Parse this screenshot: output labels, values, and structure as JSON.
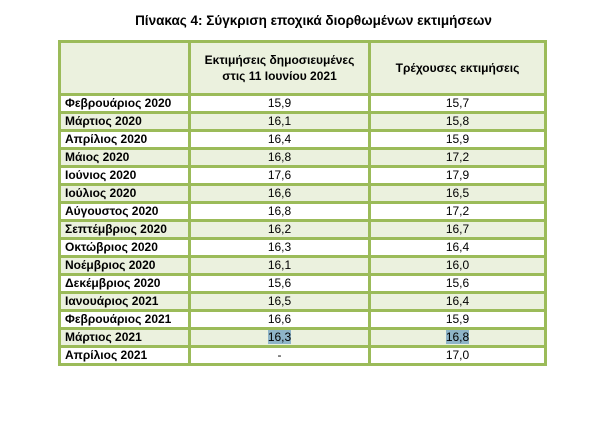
{
  "title": "Πίνακας 4: Σύγκριση εποχικά διορθωμένων εκτιμήσεων",
  "table": {
    "headers": [
      "",
      "Εκτιμήσεις δημοσιευμένες στις 11 Ιουνίου 2021",
      "Τρέχουσες εκτιμήσεις"
    ],
    "header_col2_line1": "Εκτιμήσεις δημοσιευμένες",
    "header_col2_line2": "στις 11 Ιουνίου 2021",
    "header_col3": "Τρέχουσες εκτιμήσεις",
    "rows": [
      {
        "month": "Φεβρουάριος 2020",
        "published": "15,9",
        "current": "15,7"
      },
      {
        "month": "Μάρτιος 2020",
        "published": "16,1",
        "current": "15,8"
      },
      {
        "month": "Απρίλιος 2020",
        "published": "16,4",
        "current": "15,9"
      },
      {
        "month": "Μάιος 2020",
        "published": "16,8",
        "current": "17,2"
      },
      {
        "month": "Ιούνιος 2020",
        "published": "17,6",
        "current": "17,9"
      },
      {
        "month": "Ιούλιος 2020",
        "published": "16,6",
        "current": "16,5"
      },
      {
        "month": "Αύγουστος 2020",
        "published": "16,8",
        "current": "17,2"
      },
      {
        "month": "Σεπτέμβριος 2020",
        "published": "16,2",
        "current": "16,7"
      },
      {
        "month": "Οκτώβριος 2020",
        "published": "16,3",
        "current": "16,4"
      },
      {
        "month": "Νοέμβριος 2020",
        "published": "16,1",
        "current": "16,0"
      },
      {
        "month": "Δεκέμβριος 2020",
        "published": "15,6",
        "current": "15,6"
      },
      {
        "month": "Ιανουάριος 2021",
        "published": "16,5",
        "current": "16,4"
      },
      {
        "month": "Φεβρουάριος 2021",
        "published": "16,6",
        "current": "15,9"
      },
      {
        "month": "Μάρτιος 2021",
        "published": "16,3",
        "current": "16,8"
      },
      {
        "month": "Απρίλιος 2021",
        "published": "-",
        "current": "17,0"
      }
    ]
  },
  "colors": {
    "border": "#9bbb59",
    "alt_row": "#ebf1de",
    "highlight": "#8eb4c8"
  }
}
